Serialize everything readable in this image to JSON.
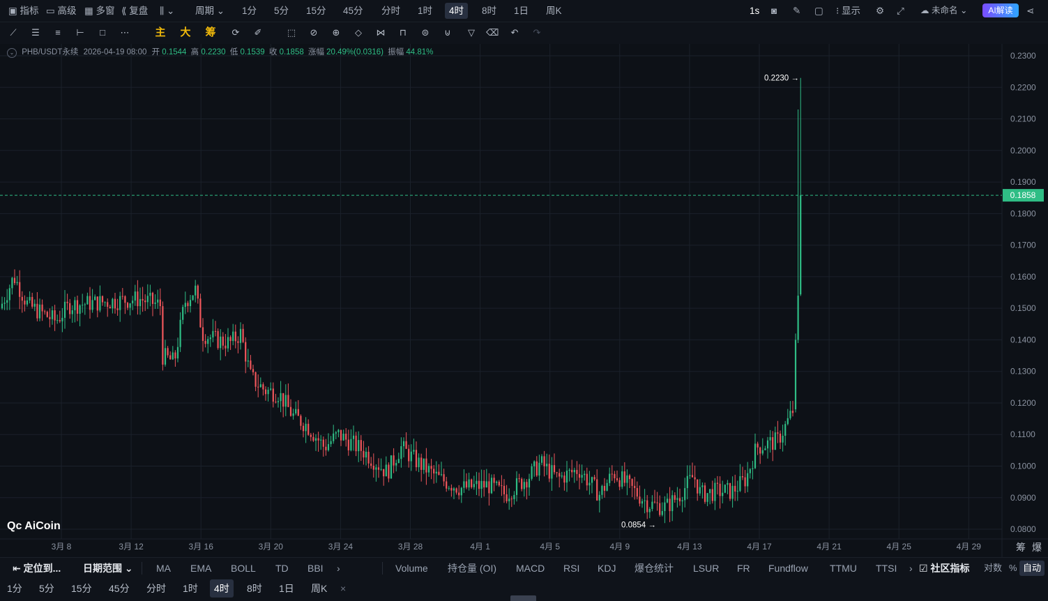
{
  "topbar": {
    "indicators": "指标",
    "advanced": "高级",
    "multi_window": "多窗",
    "replay": "复盘",
    "period": "周期",
    "periods": [
      "1分",
      "5分",
      "15分",
      "45分",
      "分时",
      "1时",
      "4时",
      "8时",
      "1日",
      "周K"
    ],
    "selected_period": "4时",
    "interval": "1s",
    "display": "显示",
    "unnamed": "未命名",
    "ai_button": "AI解读"
  },
  "drawing_tools": {
    "main": "主",
    "big": "大",
    "chips": "筹"
  },
  "info": {
    "symbol": "PHB/USDT永续",
    "datetime": "2026-04-19 08:00",
    "open_label": "开",
    "open": "0.1544",
    "high_label": "高",
    "high": "0.2230",
    "low_label": "低",
    "low": "0.1539",
    "close_label": "收",
    "close": "0.1858",
    "change_label": "涨幅",
    "change": "20.49%(0.0316)",
    "amplitude_label": "振幅",
    "amplitude": "44.81%"
  },
  "chart_data": {
    "type": "candlestick",
    "y_ticks": [
      "0.2300",
      "0.2200",
      "0.2100",
      "0.2000",
      "0.1900",
      "0.1800",
      "0.1700",
      "0.1600",
      "0.1500",
      "0.1400",
      "0.1300",
      "0.1200",
      "0.1100",
      "0.1000",
      "0.0900",
      "0.0800"
    ],
    "ylim": [
      0.08,
      0.23
    ],
    "x_ticks": [
      "3月 8",
      "3月 12",
      "3月 16",
      "3月 20",
      "3月 24",
      "3月 28",
      "4月 1",
      "4月 5",
      "4月 9",
      "4月 13",
      "4月 17",
      "4月 21",
      "4月 25",
      "4月 29"
    ],
    "current_price": "0.1858",
    "max_label": "0.2230 →",
    "min_label": "0.0854 →",
    "logo": "AiCoin",
    "up_color": "#2fbd85",
    "down_color": "#f0565b"
  },
  "bottom_bar": {
    "locate": "定位到...",
    "date_range": "日期范围",
    "main_indicators": [
      "MA",
      "EMA",
      "BOLL",
      "TD",
      "BBI"
    ],
    "sub_indicators": [
      "Volume",
      "持仓量 (OI)",
      "MACD",
      "RSI",
      "KDJ",
      "爆仓统计",
      "LSUR",
      "FR",
      "Fundflow",
      "TTMU",
      "TTSI"
    ],
    "community": "社区指标",
    "log": "对数",
    "percent": "%",
    "auto": "自动",
    "right_labels": [
      "筹",
      "爆"
    ]
  },
  "period_bar": {
    "periods": [
      "1分",
      "5分",
      "15分",
      "45分",
      "分时",
      "1时",
      "4时",
      "8时",
      "1日",
      "周K"
    ],
    "selected": "4时",
    "close": "×"
  }
}
